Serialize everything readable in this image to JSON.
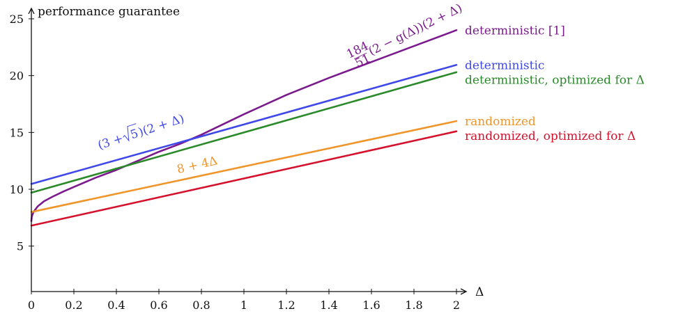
{
  "chart_data": {
    "type": "line",
    "xlabel": "Δ",
    "ylabel": "performance guarantee",
    "xlim": [
      0,
      2
    ],
    "ylim": [
      1,
      25
    ],
    "xticks": [
      0,
      0.2,
      0.4,
      0.6,
      0.8,
      1,
      1.2,
      1.4,
      1.6,
      1.8,
      2
    ],
    "xtick_labels": [
      "0",
      "0.2",
      "0.4",
      "0.6",
      "0.8",
      "1",
      "1.2",
      "1.4",
      "1.6",
      "1.8",
      "2"
    ],
    "yticks": [
      5,
      10,
      15,
      20,
      25
    ],
    "ytick_labels": [
      "5",
      "10",
      "15",
      "20",
      "25"
    ],
    "grid": false,
    "series": [
      {
        "name": "deterministic [1]",
        "color": "#7a1a8c",
        "x": [
          0,
          0.002,
          0.01,
          0.03,
          0.06,
          0.1,
          0.15,
          0.2,
          0.3,
          0.4,
          0.5,
          0.6,
          0.7,
          0.8,
          1.0,
          1.2,
          1.4,
          1.6,
          1.8,
          2.0
        ],
        "y": [
          7.2,
          7.6,
          8.0,
          8.5,
          8.95,
          9.35,
          9.8,
          10.2,
          11.0,
          11.7,
          12.5,
          13.3,
          14.0,
          14.8,
          16.6,
          18.3,
          19.8,
          21.2,
          22.6,
          24.0
        ]
      },
      {
        "name": "deterministic",
        "color": "#3f48e8",
        "x": [
          0,
          2
        ],
        "y": [
          10.47,
          20.94
        ]
      },
      {
        "name": "deterministic, optimized for Δ",
        "color": "#2a8a2a",
        "x": [
          0,
          2
        ],
        "y": [
          9.7,
          20.3
        ]
      },
      {
        "name": "randomized",
        "color": "#f0952a",
        "x": [
          0,
          2
        ],
        "y": [
          8,
          16
        ]
      },
      {
        "name": "randomized, optimized for Δ",
        "color": "#d4122e",
        "x": [
          0,
          2
        ],
        "y": [
          6.8,
          15.1
        ]
      }
    ],
    "annotations": [
      {
        "series": 0,
        "kind": "frac",
        "num": "184",
        "den": "51",
        "text": "(2 − g(Δ))(2 + Δ)",
        "x": 1.52,
        "y": 21.4,
        "angle": -26
      },
      {
        "series": 1,
        "kind": "sqrt",
        "pre": "(3 + ",
        "rad": "5",
        "post": ")(2 + Δ)",
        "x": 0.32,
        "y": 13.5,
        "angle": -18
      },
      {
        "series": 3,
        "kind": "plain",
        "text": "8 + 4Δ",
        "x": 0.69,
        "y": 11.4,
        "angle": -13
      }
    ]
  }
}
